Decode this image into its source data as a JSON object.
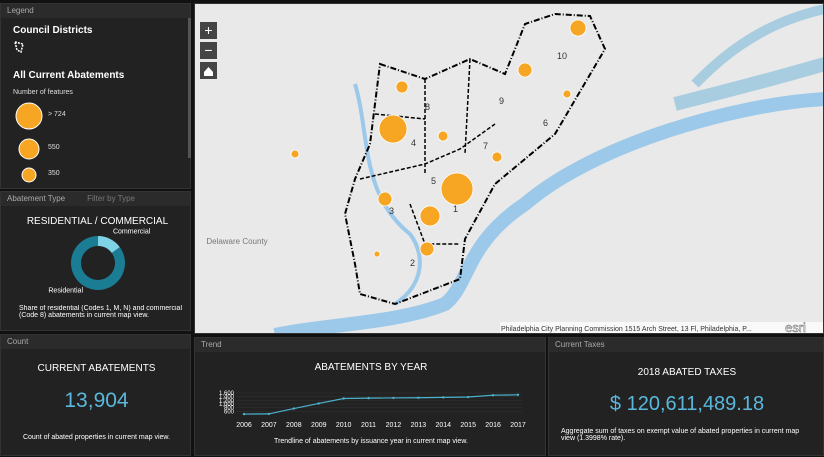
{
  "legend": {
    "header": "Legend",
    "council_title": "Council Districts",
    "abatements_title": "All Current Abatements",
    "features_label": "Number of features",
    "sizes": [
      "> 724",
      "550",
      "350"
    ]
  },
  "abatement_type": {
    "tabs": [
      "Abatement Type",
      "Filter by Type"
    ],
    "title": "RESIDENTIAL / COMMERCIAL SPLIT",
    "description": "Share of residential (Codes 1, M, N) and commercial (Code 8) abatements in current map view.",
    "chart_data": {
      "type": "pie",
      "series": [
        {
          "name": "Residential",
          "color": "#1b7d94",
          "values": [
            85
          ]
        },
        {
          "name": "Commercial",
          "color": "#7fd3e6",
          "values": [
            15
          ]
        }
      ]
    }
  },
  "map": {
    "districts": [
      "1",
      "2",
      "3",
      "4",
      "5",
      "6",
      "7",
      "8",
      "9",
      "10"
    ],
    "county": "Delaware County",
    "attribution": "Philadelphia City Planning Commission 1515 Arch Street, 13 Fl, Philadelphia, P...",
    "logo": "esri"
  },
  "count": {
    "header": "Count",
    "title": "CURRENT ABATEMENTS",
    "value": "13,904",
    "description": "Count of abated properties in current map view."
  },
  "trend": {
    "header": "Trend",
    "description": "Trendline of abatements by issuance year in current map view.",
    "chart_data": {
      "type": "line",
      "title": "ABATEMENTS BY YEAR",
      "categories": [
        "2006",
        "2007",
        "2008",
        "2009",
        "2010",
        "2011",
        "2012",
        "2013",
        "2014",
        "2015",
        "2016",
        "2017"
      ],
      "series": [
        {
          "name": "Abatements",
          "color": "#4bb3cf",
          "values": [
            450,
            460,
            750,
            1030,
            1300,
            1320,
            1330,
            1340,
            1360,
            1380,
            1480,
            1500
          ]
        }
      ],
      "ylim": [
        400,
        1600
      ],
      "yticks": [
        {
          "value": 600,
          "label": "600"
        },
        {
          "value": 800,
          "label": "800"
        },
        {
          "value": 1000,
          "label": "1,000"
        },
        {
          "value": 1200,
          "label": "1,200"
        },
        {
          "value": 1400,
          "label": "1,400"
        },
        {
          "value": 1600,
          "label": "1,600"
        }
      ]
    }
  },
  "taxes": {
    "header": "Current Taxes",
    "title": "2018 ABATED TAXES",
    "value": "$ 120,611,489.18",
    "description": "Aggregate sum of taxes on exempt value of abated properties in current map view (1.3998% rate)."
  }
}
